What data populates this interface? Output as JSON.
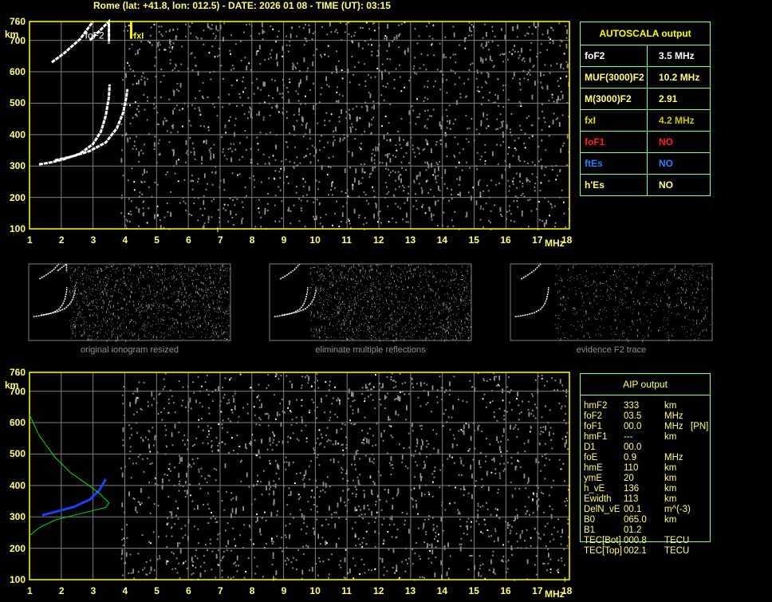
{
  "title": "Rome (lat: +41.8, lon: 012.5) - DATE: 2026 01 08 - TIME (UT): 03:15",
  "colors": {
    "axis": "#ffff80",
    "grid": "#808080",
    "trace": "#ffffff",
    "blue_trace": "#2040ff",
    "green_profile": "#00dd00",
    "table_border": "#80ff80"
  },
  "chart_data": [
    {
      "type": "scatter",
      "name": "main-ionogram",
      "xlabel": "MHz",
      "ylabel": "km",
      "xlim": [
        1,
        18
      ],
      "ylim": [
        100,
        760
      ],
      "x_ticks": [
        1,
        2,
        3,
        4,
        5,
        6,
        7,
        8,
        9,
        10,
        11,
        12,
        13,
        14,
        15,
        16,
        17,
        18
      ],
      "y_ticks": [
        100,
        200,
        300,
        400,
        500,
        600,
        700,
        760
      ],
      "grid": true,
      "annotations": [
        {
          "text": "foF2",
          "freq": 3.5
        },
        {
          "text": "fxI",
          "freq": 4.2
        }
      ],
      "traces": {
        "o_trace": [
          [
            1.3,
            305
          ],
          [
            1.7,
            312
          ],
          [
            2.1,
            322
          ],
          [
            2.6,
            340
          ],
          [
            3.0,
            370
          ],
          [
            3.25,
            410
          ],
          [
            3.4,
            460
          ],
          [
            3.5,
            520
          ],
          [
            3.52,
            560
          ]
        ],
        "x_trace": [
          [
            1.8,
            318
          ],
          [
            2.4,
            332
          ],
          [
            2.9,
            348
          ],
          [
            3.4,
            375
          ],
          [
            3.75,
            420
          ],
          [
            3.95,
            470
          ],
          [
            4.05,
            520
          ],
          [
            4.08,
            545
          ]
        ],
        "multiple_1": [
          [
            1.7,
            630
          ],
          [
            2.1,
            660
          ],
          [
            2.6,
            705
          ],
          [
            3.0,
            760
          ]
        ],
        "multiple_2": [
          [
            2.9,
            700
          ],
          [
            3.3,
            740
          ],
          [
            3.5,
            760
          ],
          [
            3.5,
            690
          ]
        ]
      }
    },
    {
      "type": "scatter",
      "name": "aip-ionogram",
      "xlabel": "MHz",
      "ylabel": "km",
      "xlim": [
        1,
        18
      ],
      "ylim": [
        100,
        760
      ],
      "x_ticks": [
        1,
        2,
        3,
        4,
        5,
        6,
        7,
        8,
        9,
        10,
        11,
        12,
        13,
        14,
        15,
        16,
        17,
        18
      ],
      "y_ticks": [
        100,
        200,
        300,
        400,
        500,
        600,
        700,
        760
      ],
      "grid": true,
      "traces": {
        "blue_trace": [
          [
            1.4,
            305
          ],
          [
            1.9,
            318
          ],
          [
            2.4,
            332
          ],
          [
            2.9,
            355
          ],
          [
            3.2,
            385
          ],
          [
            3.4,
            420
          ]
        ],
        "green_profile": [
          [
            1.0,
            625
          ],
          [
            1.3,
            560
          ],
          [
            1.8,
            490
          ],
          [
            2.3,
            440
          ],
          [
            2.8,
            405
          ],
          [
            3.2,
            375
          ],
          [
            3.5,
            345
          ],
          [
            3.4,
            330
          ],
          [
            3.0,
            320
          ],
          [
            2.4,
            305
          ],
          [
            1.8,
            290
          ],
          [
            1.3,
            265
          ],
          [
            1.0,
            240
          ]
        ]
      }
    }
  ],
  "autoscala": {
    "header": "AUTOSCALA output",
    "rows": [
      {
        "key": "foF2",
        "value": "3.5 MHz",
        "kc": "#ffffff",
        "vc": "#ffffff"
      },
      {
        "key": "MUF(3000)F2",
        "value": "10.2 MHz",
        "kc": "#ffff80",
        "vc": "#ffff80"
      },
      {
        "key": "M(3000)F2",
        "value": "2.91",
        "kc": "#ffff80",
        "vc": "#ffff80"
      },
      {
        "key": "fxI",
        "value": "4.2 MHz",
        "kc": "#e0e000",
        "vc": "#c8c800"
      },
      {
        "key": "foF1",
        "value": "NO",
        "kc": "#ff2020",
        "vc": "#ff2020"
      },
      {
        "key": "ftEs",
        "value": "NO",
        "kc": "#2080ff",
        "vc": "#2080ff"
      },
      {
        "key": "h'Es",
        "value": "NO",
        "kc": "#ffff80",
        "vc": "#ffff80"
      }
    ]
  },
  "aip": {
    "header": "AIP output",
    "rows": [
      [
        "hmF2",
        "333",
        "km",
        ""
      ],
      [
        "foF2",
        "03.5",
        "MHz",
        ""
      ],
      [
        "foF1",
        "00.0",
        "MHz",
        "[PN]"
      ],
      [
        "hmF1",
        "---",
        "km",
        ""
      ],
      [
        "D1",
        "00.0",
        "",
        ""
      ],
      [
        "foE",
        "0.9",
        "MHz",
        ""
      ],
      [
        "hmE",
        "110",
        "km",
        ""
      ],
      [
        "ymE",
        "20",
        "km",
        ""
      ],
      [
        "h_vE",
        "136",
        "km",
        ""
      ],
      [
        "Ewidth",
        "113",
        "km",
        ""
      ],
      [
        "DelN_vE",
        "00.1",
        "m^(-3)",
        ""
      ],
      [
        "B0",
        "065.0",
        "km",
        ""
      ],
      [
        "B1",
        "01.2",
        "",
        ""
      ],
      [
        "TEC[Bot]",
        "000.8",
        "TECU",
        ""
      ],
      [
        "TEC[Top]",
        "002.1",
        "TECU",
        ""
      ]
    ]
  },
  "thumbnails": [
    "original ionogram resized",
    "eliminate multiple reflections",
    "evidence F2 trace"
  ]
}
